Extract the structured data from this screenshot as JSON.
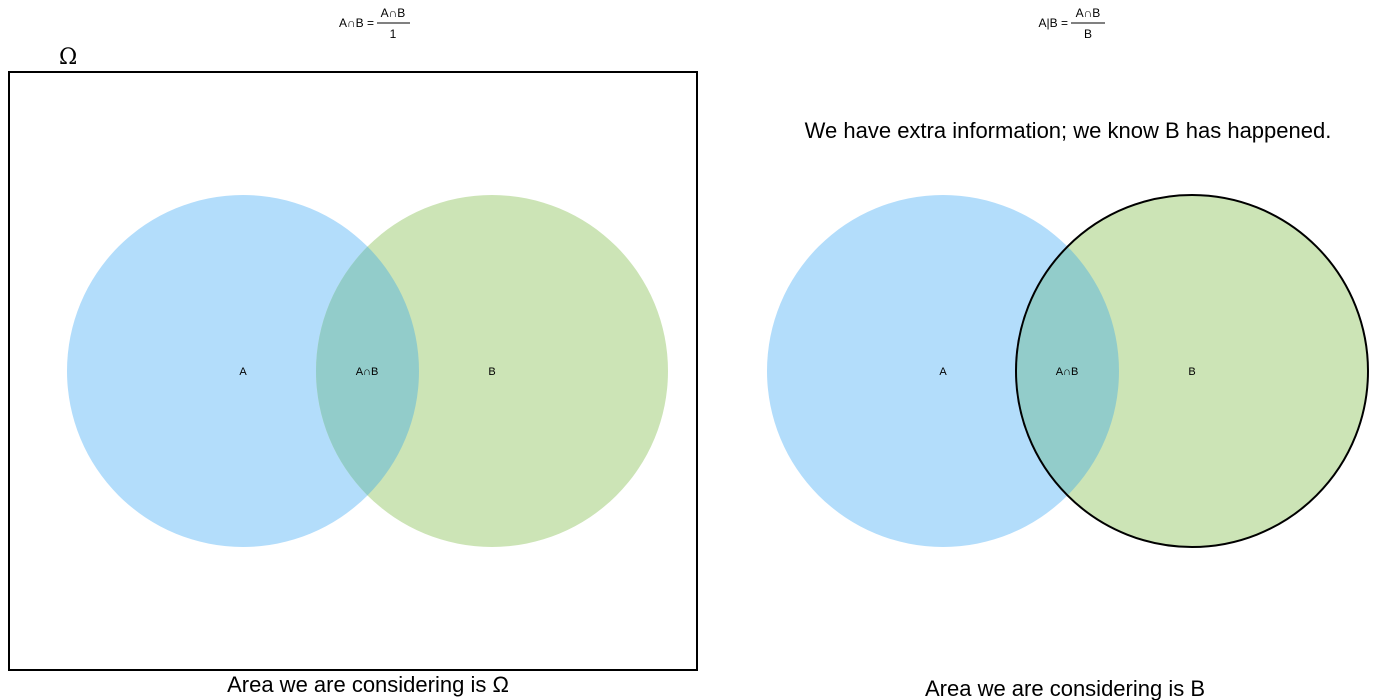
{
  "left_panel": {
    "formula": {
      "lhs": "A∩B =",
      "numerator": "A∩B",
      "denominator": "1"
    },
    "universe_label": "Ω",
    "set_a_label": "A",
    "intersection_label": "A∩B",
    "set_b_label": "B",
    "caption": "Area we are considering is Ω"
  },
  "right_panel": {
    "formula": {
      "lhs": "A|B =",
      "numerator": "A∩B",
      "denominator": "B"
    },
    "info_text": "We have extra information; we know B has happened.",
    "set_a_label": "A",
    "intersection_label": "A∩B",
    "set_b_label": "B",
    "caption": "Area we are considering is B"
  },
  "colors": {
    "set_a": "#b3ddfb",
    "set_b": "#cce4b6",
    "intersection": "#92ccca",
    "outline": "#000000"
  }
}
